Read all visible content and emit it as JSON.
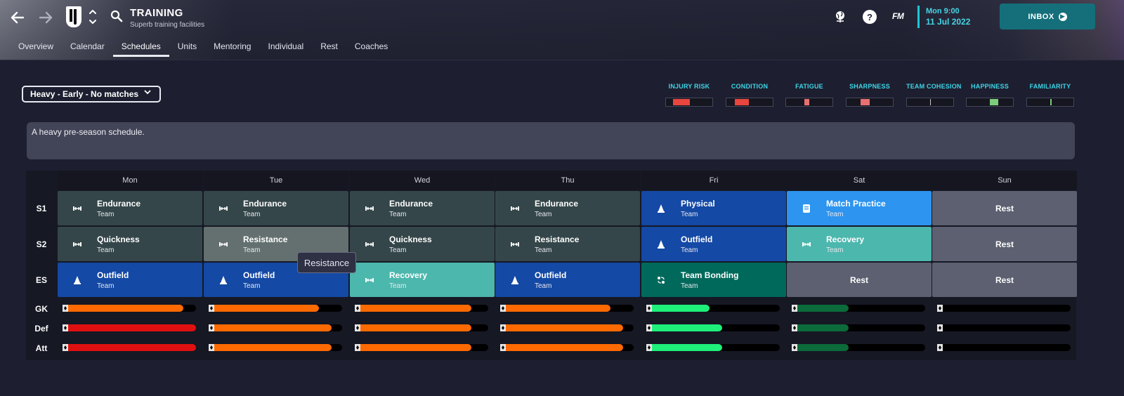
{
  "header": {
    "title": "TRAINING",
    "subtitle": "Superb training facilities",
    "fm_logo": "FM",
    "help_symbol": "?",
    "date_line1": "Mon 9:00",
    "date_line2": "11 Jul 2022",
    "inbox_label": "INBOX",
    "icons": [
      "back-arrow-icon",
      "forward-arrow-icon",
      "club-crest-icon",
      "switch-arrows-icon",
      "search-icon",
      "globe-icon",
      "help-icon"
    ]
  },
  "tabs": [
    "Overview",
    "Calendar",
    "Schedules",
    "Units",
    "Mentoring",
    "Individual",
    "Rest",
    "Coaches"
  ],
  "active_tab": "Schedules",
  "schedule_select": {
    "value": "Heavy - Early - No matches"
  },
  "description": "A heavy pre-season schedule.",
  "indicators": [
    {
      "label": "INJURY RISK",
      "color": "#e8463f"
    },
    {
      "label": "CONDITION",
      "color": "#e8463f"
    },
    {
      "label": "FATIGUE",
      "color": "#e87070"
    },
    {
      "label": "SHARPNESS",
      "color": "#e87070"
    },
    {
      "label": "TEAM COHESION",
      "color": "#c8c8c8"
    },
    {
      "label": "HAPPINESS",
      "color": "#7ccc7c"
    },
    {
      "label": "FAMILIARITY",
      "color": "#7ccc7c"
    }
  ],
  "days": [
    "Mon",
    "Tue",
    "Wed",
    "Thu",
    "Fri",
    "Sat",
    "Sun"
  ],
  "sessions": [
    {
      "label": "S1",
      "cells": [
        {
          "title": "Endurance",
          "sub": "Team",
          "icon": "endurance-icon"
        },
        {
          "title": "Endurance",
          "sub": "Team",
          "icon": "endurance-icon"
        },
        {
          "title": "Endurance",
          "sub": "Team",
          "icon": "endurance-icon"
        },
        {
          "title": "Endurance",
          "sub": "Team",
          "icon": "endurance-icon"
        },
        {
          "title": "Physical",
          "sub": "Team",
          "icon": "cone-icon"
        },
        {
          "title": "Match Practice",
          "sub": "Team",
          "icon": "clipboard-icon"
        },
        {
          "title": "Rest",
          "sub": "",
          "icon": ""
        }
      ]
    },
    {
      "label": "S2",
      "cells": [
        {
          "title": "Quickness",
          "sub": "Team",
          "icon": "endurance-icon"
        },
        {
          "title": "Resistance",
          "sub": "Team",
          "icon": "endurance-icon"
        },
        {
          "title": "Quickness",
          "sub": "Team",
          "icon": "endurance-icon"
        },
        {
          "title": "Resistance",
          "sub": "Team",
          "icon": "endurance-icon"
        },
        {
          "title": "Outfield",
          "sub": "Team",
          "icon": "cone-icon"
        },
        {
          "title": "Recovery",
          "sub": "Team",
          "icon": "endurance-icon"
        },
        {
          "title": "Rest",
          "sub": "",
          "icon": ""
        }
      ]
    },
    {
      "label": "ES",
      "cells": [
        {
          "title": "Outfield",
          "sub": "Team",
          "icon": "cone-icon"
        },
        {
          "title": "Outfield",
          "sub": "Team",
          "icon": "cone-icon"
        },
        {
          "title": "Recovery",
          "sub": "Team",
          "icon": "endurance-icon"
        },
        {
          "title": "Outfield",
          "sub": "Team",
          "icon": "cone-icon"
        },
        {
          "title": "Team Bonding",
          "sub": "Team",
          "icon": "bonding-icon"
        },
        {
          "title": "Rest",
          "sub": "",
          "icon": ""
        },
        {
          "title": "Rest",
          "sub": "",
          "icon": ""
        }
      ]
    }
  ],
  "tooltip": "Resistance",
  "load_rows": [
    {
      "label": "GK",
      "values": [
        0.9,
        0.82,
        0.87,
        0.82,
        0.45,
        0.4,
        0.0
      ],
      "colors": [
        "#ff6a00",
        "#ff6a00",
        "#ff6a00",
        "#ff6a00",
        "#1ef07a",
        "#0b6b3a",
        "#0b6b3a"
      ]
    },
    {
      "label": "Def",
      "values": [
        1.0,
        0.92,
        0.87,
        0.92,
        0.55,
        0.4,
        0.0
      ],
      "colors": [
        "#e01010",
        "#ff6a00",
        "#ff6a00",
        "#ff6a00",
        "#1ef07a",
        "#0b6b3a",
        "#0b6b3a"
      ]
    },
    {
      "label": "Att",
      "values": [
        1.0,
        0.92,
        0.87,
        0.92,
        0.55,
        0.4,
        0.0
      ],
      "colors": [
        "#e01010",
        "#ff6a00",
        "#ff6a00",
        "#ff6a00",
        "#1ef07a",
        "#0b6b3a",
        "#0b6b3a"
      ]
    }
  ]
}
